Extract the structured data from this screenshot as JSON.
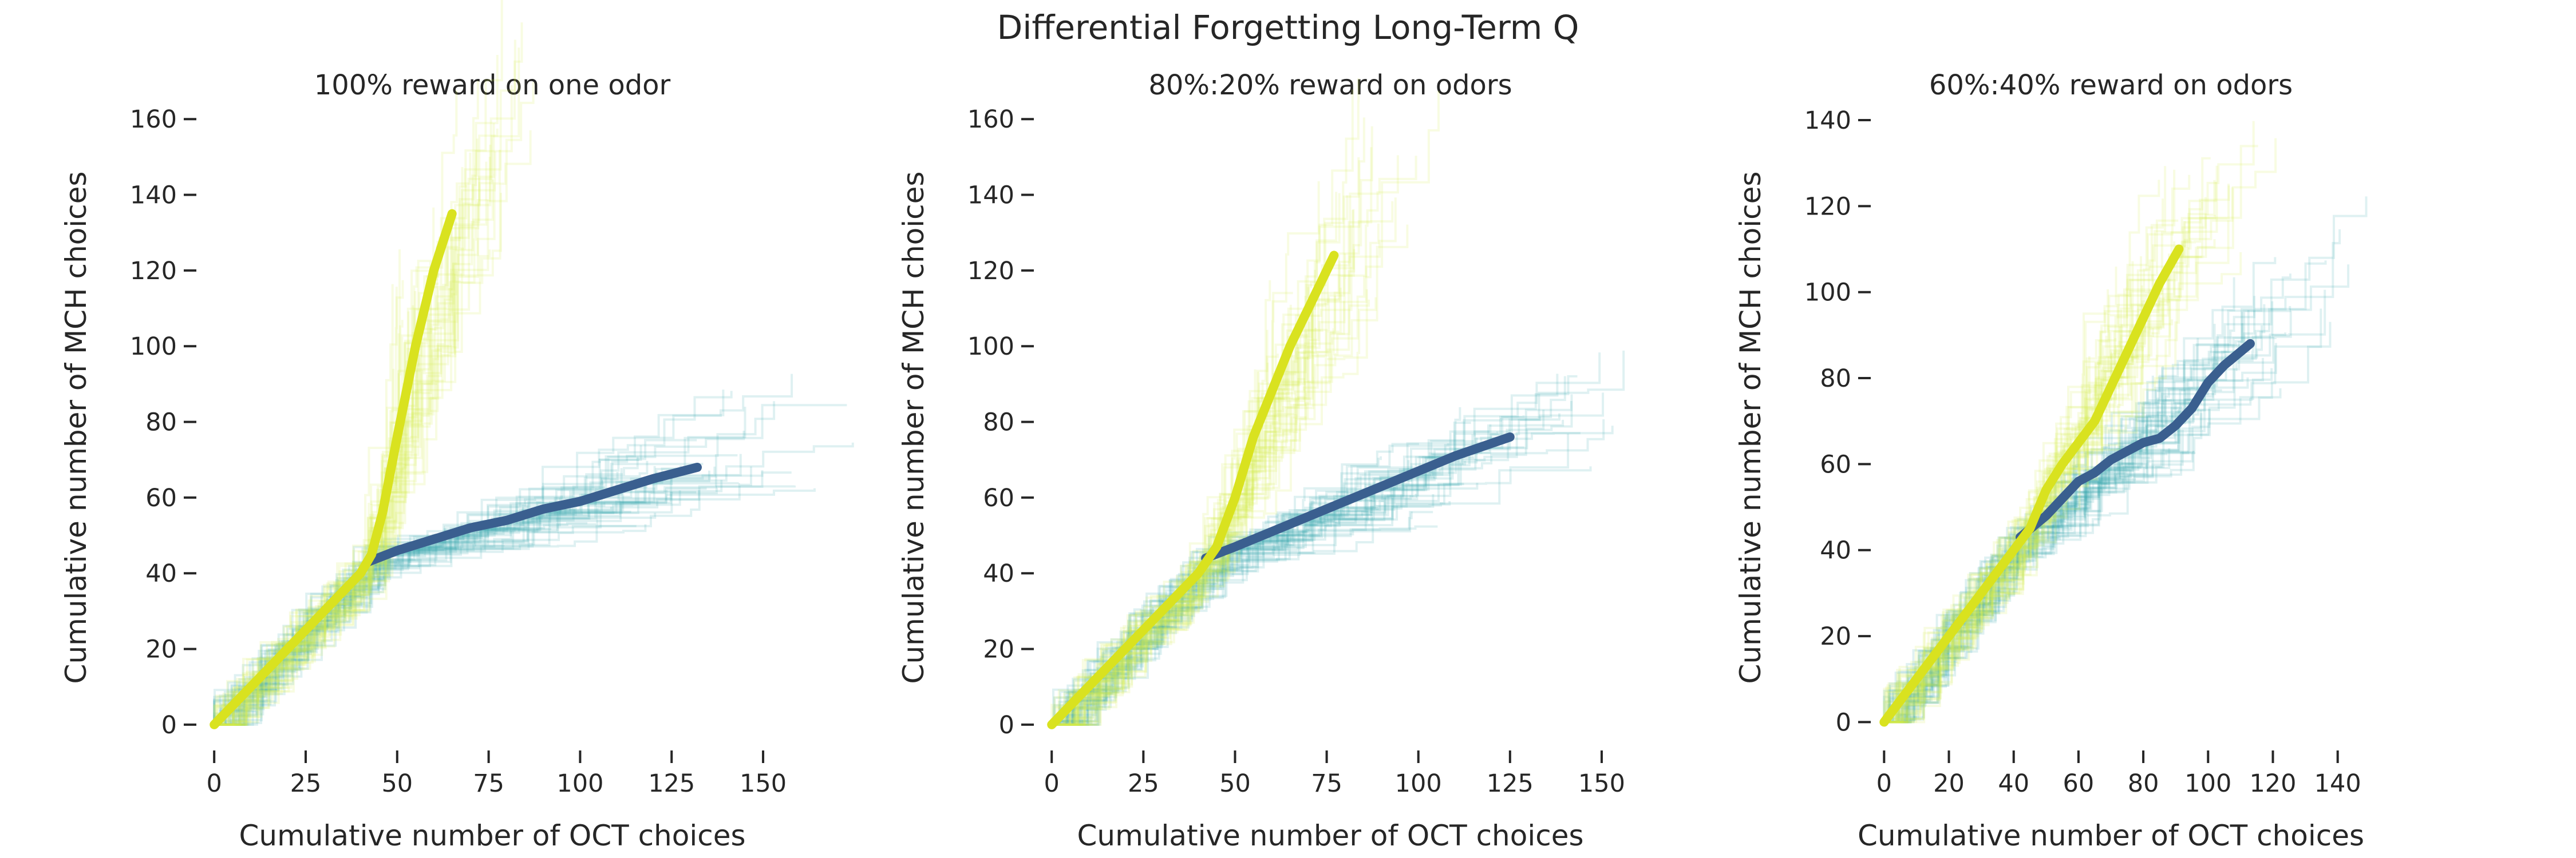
{
  "figure_title": "Differential Forgetting Long-Term Q",
  "colors": {
    "text": "#262626",
    "yellow_series": "#d9e21f",
    "blue_series": "#3a5f8f",
    "yellow_traces": "#d4ec4a",
    "blue_traces": "#3aa6b0"
  },
  "chart_data": [
    {
      "type": "line",
      "title": "100% reward on one odor",
      "xlabel": "Cumulative number of OCT choices",
      "ylabel": "Cumulative number of MCH choices",
      "xlim": [
        -3,
        155
      ],
      "ylim": [
        -5,
        162
      ],
      "xticks": [
        0,
        25,
        50,
        75,
        100,
        125,
        150
      ],
      "yticks": [
        0,
        20,
        40,
        60,
        80,
        100,
        120,
        140,
        160
      ],
      "series": [
        {
          "color": "#d9e21f",
          "x": [
            0,
            5,
            10,
            15,
            20,
            25,
            30,
            35,
            40,
            43,
            46,
            50,
            55,
            60,
            65
          ],
          "y": [
            0,
            5,
            10,
            15,
            20,
            25,
            30,
            35,
            40,
            45,
            56,
            76,
            100,
            120,
            135
          ]
        },
        {
          "color": "#3a5f8f",
          "x": [
            42,
            50,
            60,
            70,
            80,
            90,
            100,
            110,
            120,
            132
          ],
          "y": [
            43,
            46,
            49,
            52,
            54,
            57,
            59,
            62,
            65,
            68
          ]
        }
      ],
      "traces": {
        "yellow_end": [
          65,
          135
        ],
        "blue_end": [
          132,
          68
        ],
        "count": 45,
        "seed": 11
      }
    },
    {
      "type": "line",
      "title": "80%:20% reward on odors",
      "xlabel": "Cumulative number of OCT choices",
      "ylabel": "Cumulative number of MCH choices",
      "xlim": [
        -3,
        155
      ],
      "ylim": [
        -5,
        162
      ],
      "xticks": [
        0,
        25,
        50,
        75,
        100,
        125,
        150
      ],
      "yticks": [
        0,
        20,
        40,
        60,
        80,
        100,
        120,
        140,
        160
      ],
      "series": [
        {
          "color": "#d9e21f",
          "x": [
            0,
            5,
            10,
            15,
            20,
            25,
            30,
            35,
            40,
            45,
            50,
            55,
            60,
            65,
            70,
            77
          ],
          "y": [
            0,
            5,
            10,
            15,
            20,
            25,
            30,
            35,
            40,
            47,
            60,
            76,
            88,
            100,
            110,
            124
          ]
        },
        {
          "color": "#3a5f8f",
          "x": [
            42,
            50,
            60,
            70,
            80,
            90,
            100,
            110,
            125
          ],
          "y": [
            44,
            47,
            51,
            55,
            59,
            63,
            67,
            71,
            76
          ]
        }
      ],
      "traces": {
        "yellow_end": [
          77,
          124
        ],
        "blue_end": [
          125,
          76
        ],
        "count": 45,
        "seed": 23
      }
    },
    {
      "type": "line",
      "title": "60%:40% reward on odors",
      "xlabel": "Cumulative number of OCT choices",
      "ylabel": "Cumulative number of MCH choices",
      "xlim": [
        -2,
        142
      ],
      "ylim": [
        -5,
        142
      ],
      "xticks": [
        0,
        20,
        40,
        60,
        80,
        100,
        120,
        140
      ],
      "yticks": [
        0,
        20,
        40,
        60,
        80,
        100,
        120,
        140
      ],
      "series": [
        {
          "color": "#d9e21f",
          "x": [
            0,
            10,
            20,
            30,
            40,
            45,
            50,
            55,
            60,
            65,
            70,
            75,
            80,
            85,
            91
          ],
          "y": [
            0,
            10,
            20,
            30,
            40,
            45,
            54,
            60,
            65,
            70,
            78,
            86,
            94,
            102,
            110
          ]
        },
        {
          "color": "#3a5f8f",
          "x": [
            42,
            50,
            55,
            60,
            65,
            70,
            75,
            80,
            85,
            90,
            95,
            100,
            105,
            113
          ],
          "y": [
            43,
            48,
            52,
            56,
            58,
            61,
            63,
            65,
            66,
            69,
            73,
            79,
            83,
            88
          ]
        }
      ],
      "traces": {
        "yellow_end": [
          91,
          110
        ],
        "blue_end": [
          113,
          88
        ],
        "count": 45,
        "seed": 37
      }
    }
  ]
}
